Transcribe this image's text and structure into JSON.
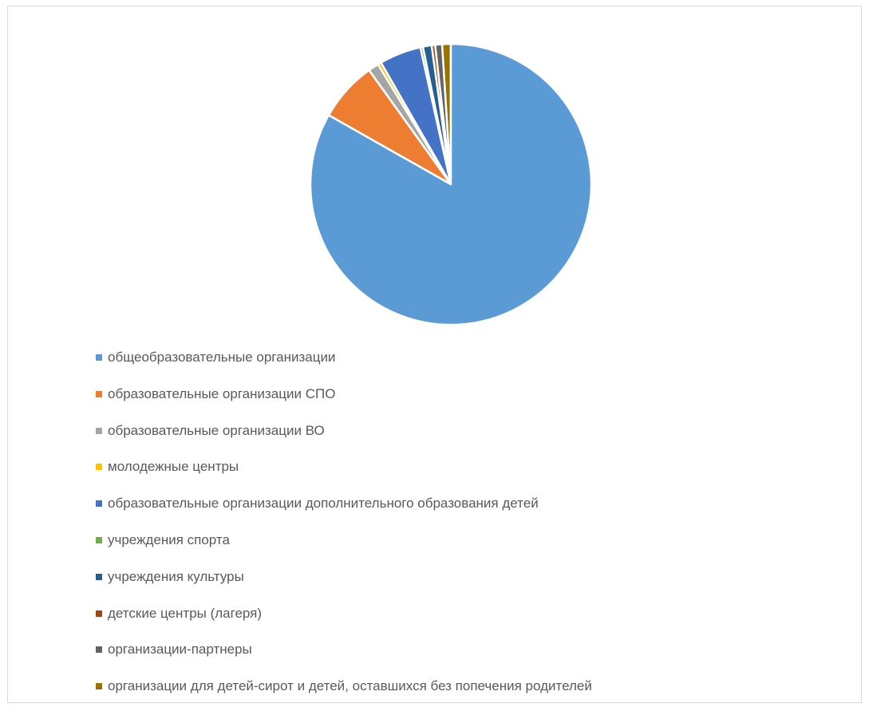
{
  "chart_data": {
    "type": "pie",
    "legend_position": "bottom",
    "slices": [
      {
        "label": "общеобразовательные организации",
        "value": 83.2,
        "color": "#5B9BD5"
      },
      {
        "label": "образовательные организации СПО",
        "value": 6.9,
        "color": "#ED7D31"
      },
      {
        "label": "образовательные организации ВО",
        "value": 1.2,
        "color": "#A5A5A5"
      },
      {
        "label": "молодежные центры",
        "value": 0.4,
        "color": "#FFC000"
      },
      {
        "label": "образовательные организации дополнительного образования детей",
        "value": 4.8,
        "color": "#4472C4"
      },
      {
        "label": "учреждения спорта",
        "value": 0.3,
        "color": "#70AD47"
      },
      {
        "label": "учреждения культуры",
        "value": 1.0,
        "color": "#255E91"
      },
      {
        "label": "детские центры (лагеря)",
        "value": 0.4,
        "color": "#9E480E"
      },
      {
        "label": "организации-партнеры",
        "value": 0.8,
        "color": "#636363"
      },
      {
        "label": "организации для детей-сирот и детей, оставшихся без попечения родителей",
        "value": 1.0,
        "color": "#997300"
      }
    ]
  }
}
